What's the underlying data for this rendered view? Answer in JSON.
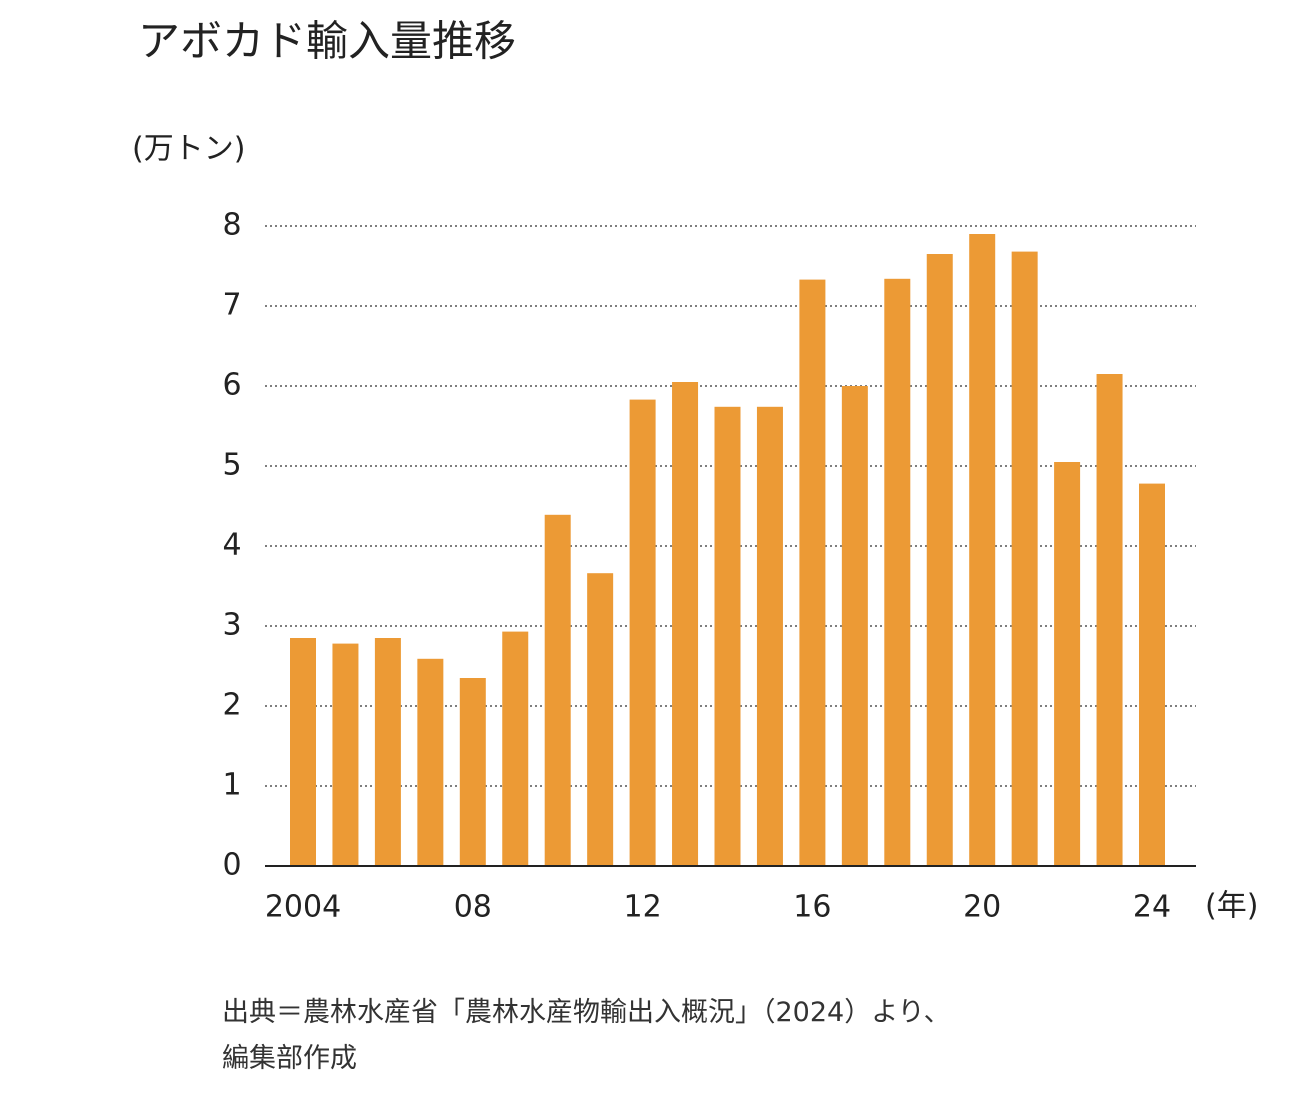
{
  "chart_data": {
    "type": "bar",
    "title": "アボカド輸入量推移",
    "y_unit": "(万トン)",
    "x_unit": "(年)",
    "categories": [
      "2004",
      null,
      null,
      null,
      "08",
      null,
      null,
      null,
      "12",
      null,
      null,
      null,
      "16",
      null,
      null,
      null,
      "20",
      null,
      null,
      null,
      "24"
    ],
    "values": [
      2.85,
      2.78,
      2.85,
      2.59,
      2.35,
      2.93,
      4.39,
      3.66,
      5.83,
      6.05,
      5.74,
      5.74,
      7.33,
      6.0,
      7.34,
      7.65,
      7.9,
      7.68,
      5.05,
      6.15,
      4.78
    ],
    "color": "#ec9a35",
    "ylim": [
      0,
      8
    ],
    "yticks": [
      0,
      1,
      2,
      3,
      4,
      5,
      6,
      7,
      8
    ],
    "grid": true,
    "source": [
      "出典＝農林水産省「農林水産物輸出入概況」（2024）より、",
      "編集部作成"
    ]
  }
}
